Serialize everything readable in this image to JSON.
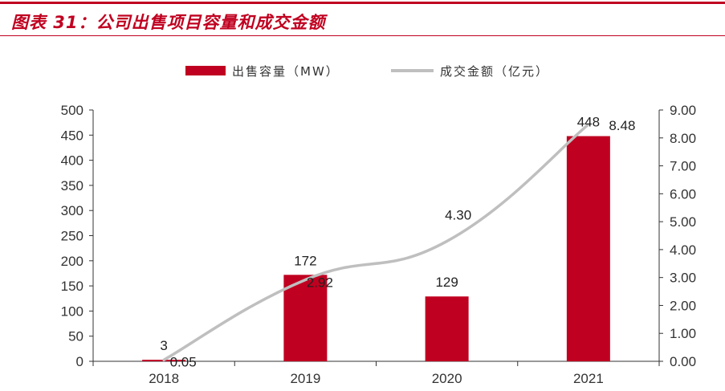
{
  "header": {
    "title": "图表 31：公司出售项目容量和成交金额",
    "accent_color": "#c00020"
  },
  "chart_data": {
    "type": "bar",
    "categories": [
      "2018",
      "2019",
      "2020",
      "2021"
    ],
    "series": [
      {
        "name": "出售容量（MW）",
        "type": "bar",
        "axis": "left",
        "color": "#c00020",
        "values": [
          3,
          172,
          129,
          448
        ],
        "labels": [
          "3",
          "172",
          "129",
          "448"
        ]
      },
      {
        "name": "成交金额（亿元）",
        "type": "line",
        "axis": "right",
        "color": "#bfbfbf",
        "values": [
          0.05,
          2.92,
          4.3,
          8.48
        ],
        "labels": [
          "0.05",
          "2.92",
          "4.30",
          "8.48"
        ]
      }
    ],
    "y_left": {
      "ylim": [
        0,
        500
      ],
      "ticks": [
        "0",
        "50",
        "100",
        "150",
        "200",
        "250",
        "300",
        "350",
        "400",
        "450",
        "500"
      ]
    },
    "y_right": {
      "ylim": [
        0,
        9
      ],
      "ticks": [
        "0.00",
        "1.00",
        "2.00",
        "3.00",
        "4.00",
        "5.00",
        "6.00",
        "7.00",
        "8.00",
        "9.00"
      ]
    },
    "legend_position": "top-center",
    "grid": false
  }
}
